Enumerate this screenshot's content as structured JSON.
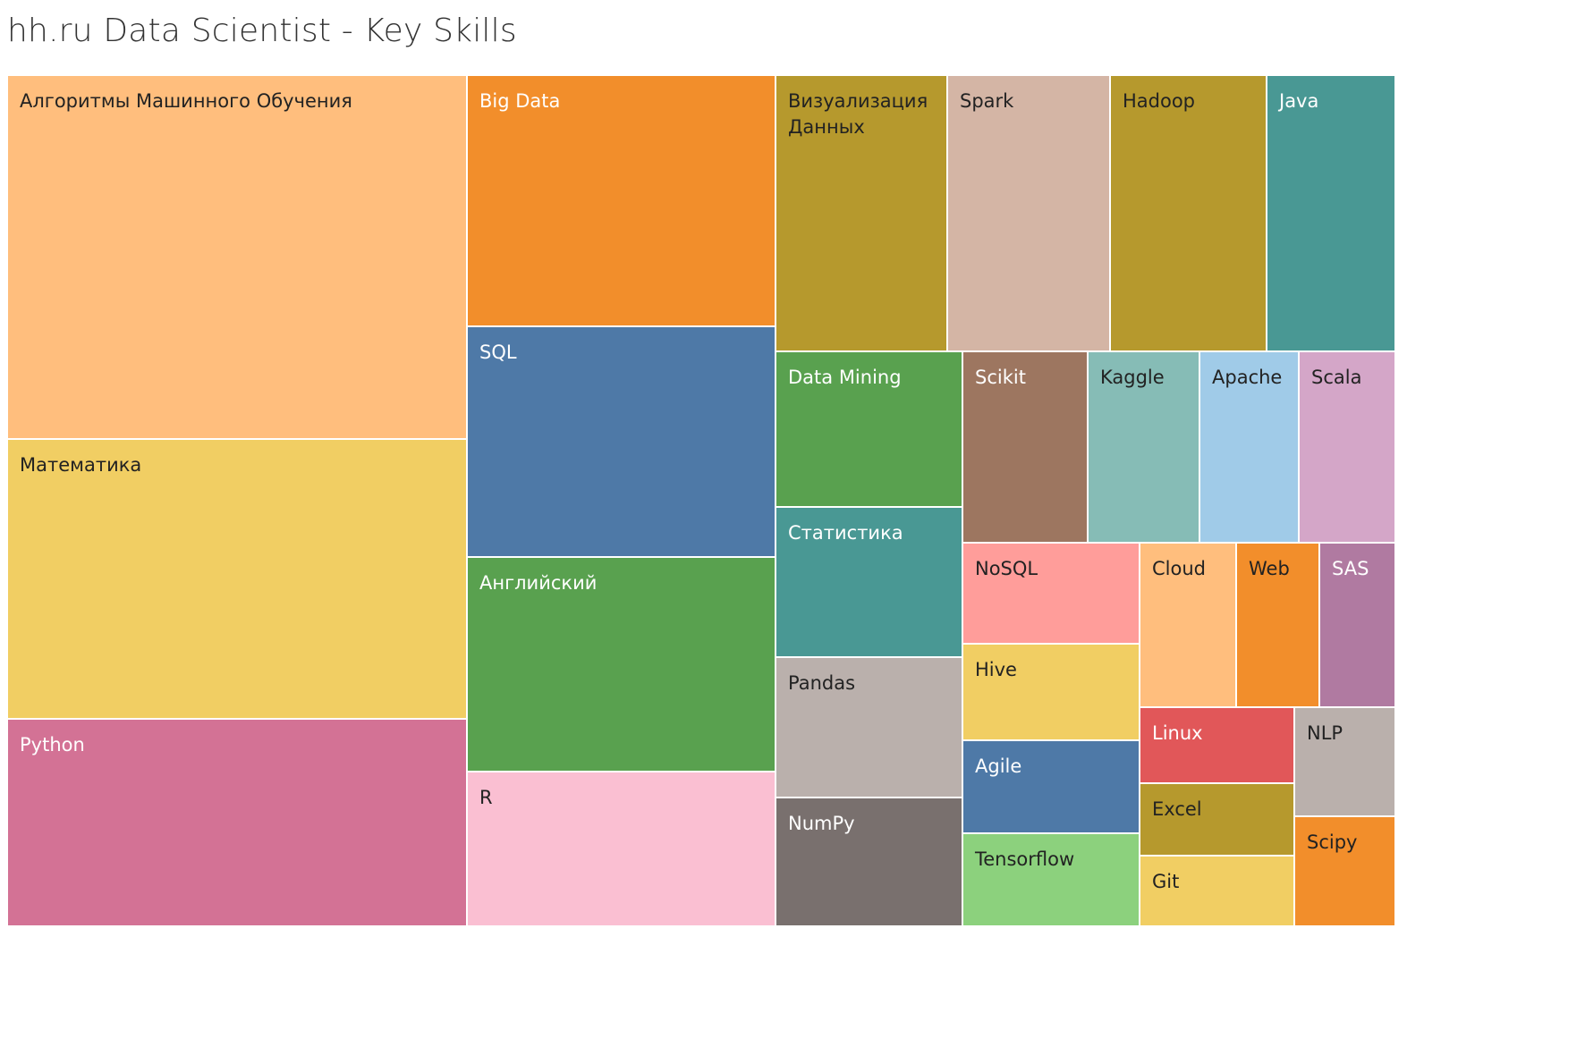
{
  "chart_data": {
    "type": "treemap",
    "title": "hh.ru Data Scientist - Key Skills",
    "layout": {
      "columns": [
        {
          "cells": [
            {
              "label": "Алгоритмы Машинного Обучения",
              "weight": 407,
              "color": "#FFBE7D",
              "text": "#222222"
            },
            {
              "label": "Математика",
              "weight": 313,
              "color": "#F1CE63",
              "text": "#222222"
            },
            {
              "label": "Python",
              "weight": 232,
              "color": "#D37295",
              "text": "#ffffff"
            }
          ]
        },
        {
          "cells": [
            {
              "label": "Big Data",
              "weight": 281,
              "color": "#F28E2B",
              "text": "#ffffff"
            },
            {
              "label": "SQL",
              "weight": 258,
              "color": "#4E79A7",
              "text": "#ffffff"
            },
            {
              "label": "Английский",
              "weight": 240,
              "color": "#59A14F",
              "text": "#ffffff"
            },
            {
              "label": "R",
              "weight": 173,
              "color": "#FABFD2",
              "text": "#222222"
            }
          ]
        },
        {
          "groups": [
            {
              "type": "row",
              "weight": 309,
              "cells": [
                {
                  "label": "Визуализация Данных",
                  "weight": 192,
                  "color": "#B6992D",
                  "text": "#222222"
                },
                {
                  "label": "Spark",
                  "weight": 182,
                  "color": "#D4B5A5",
                  "text": "#222222"
                },
                {
                  "label": "Hadoop",
                  "weight": 175,
                  "color": "#B6992D",
                  "text": "#222222"
                },
                {
                  "label": "Java",
                  "weight": 143,
                  "color": "#499894",
                  "text": "#ffffff"
                }
              ]
            },
            {
              "type": "cols",
              "weight": 643,
              "columns": [
                {
                  "weight": 209,
                  "cells": [
                    {
                      "label": "Data Mining",
                      "weight": 174,
                      "color": "#59A14F",
                      "text": "#ffffff"
                    },
                    {
                      "label": "Статистика",
                      "weight": 168,
                      "color": "#499894",
                      "text": "#ffffff"
                    },
                    {
                      "label": "Pandas",
                      "weight": 157,
                      "color": "#BAB0AC",
                      "text": "#222222"
                    },
                    {
                      "label": "NumPy",
                      "weight": 144,
                      "color": "#79706E",
                      "text": "#ffffff"
                    }
                  ]
                },
                {
                  "weight": 484,
                  "groups": [
                    {
                      "type": "row",
                      "weight": 214,
                      "cells": [
                        {
                          "label": "Scikit",
                          "weight": 140,
                          "color": "#9D7660",
                          "text": "#ffffff"
                        },
                        {
                          "label": "Kaggle",
                          "weight": 125,
                          "color": "#86BCB6",
                          "text": "#222222"
                        },
                        {
                          "label": "Apache",
                          "weight": 111,
                          "color": "#A0CBE8",
                          "text": "#222222"
                        },
                        {
                          "label": "Scala",
                          "weight": 108,
                          "color": "#D4A6C8",
                          "text": "#222222"
                        }
                      ]
                    },
                    {
                      "type": "cols",
                      "weight": 429,
                      "columns": [
                        {
                          "weight": 198,
                          "cells": [
                            {
                              "label": "NoSQL",
                              "weight": 113,
                              "color": "#FF9D9A",
                              "text": "#222222"
                            },
                            {
                              "label": "Hive",
                              "weight": 108,
                              "color": "#F1CE63",
                              "text": "#222222"
                            },
                            {
                              "label": "Agile",
                              "weight": 104,
                              "color": "#4E79A7",
                              "text": "#ffffff"
                            },
                            {
                              "label": "Tensorflow",
                              "weight": 104,
                              "color": "#8CD17D",
                              "text": "#222222"
                            }
                          ]
                        },
                        {
                          "weight": 286,
                          "groups": [
                            {
                              "type": "row",
                              "weight": 184,
                              "cells": [
                                {
                                  "label": "Cloud",
                                  "weight": 108,
                                  "color": "#FFBE7D",
                                  "text": "#222222"
                                },
                                {
                                  "label": "Web",
                                  "weight": 93,
                                  "color": "#F28E2B",
                                  "text": "#222222"
                                },
                                {
                                  "label": "SAS",
                                  "weight": 85,
                                  "color": "#B07AA1",
                                  "text": "#ffffff"
                                }
                              ]
                            },
                            {
                              "type": "cols",
                              "weight": 245,
                              "columns": [
                                {
                                  "weight": 173,
                                  "cells": [
                                    {
                                      "label": "Linux",
                                      "weight": 85,
                                      "color": "#E15759",
                                      "text": "#ffffff"
                                    },
                                    {
                                      "label": "Excel",
                                      "weight": 81,
                                      "color": "#B6992D",
                                      "text": "#222222"
                                    },
                                    {
                                      "label": "Git",
                                      "weight": 79,
                                      "color": "#F1CE63",
                                      "text": "#222222"
                                    }
                                  ]
                                },
                                {
                                  "weight": 113,
                                  "cells": [
                                    {
                                      "label": "NLP",
                                      "weight": 122,
                                      "color": "#BAB0AC",
                                      "text": "#222222"
                                    },
                                    {
                                      "label": "Scipy",
                                      "weight": 123,
                                      "color": "#F28E2B",
                                      "text": "#222222"
                                    }
                                  ]
                                }
                              ]
                            }
                          ]
                        }
                      ]
                    }
                  ]
                }
              ]
            }
          ]
        }
      ],
      "column_weights": [
        514,
        345,
        693
      ]
    }
  }
}
